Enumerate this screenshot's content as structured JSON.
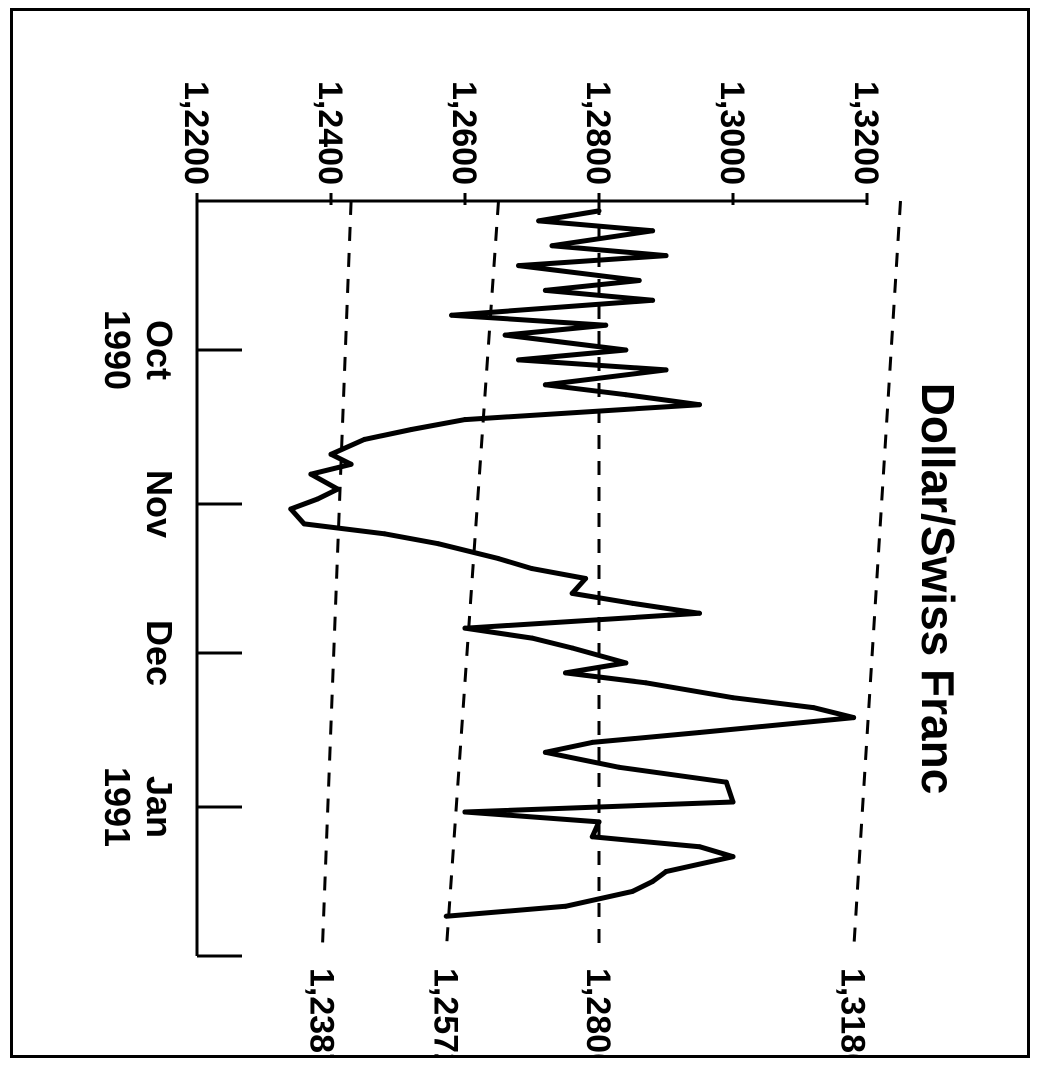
{
  "chart_data": {
    "type": "line",
    "title": "Dollar/Swiss Franc",
    "xlabel": "",
    "ylabel": "",
    "ylim": [
      1.22,
      1.32
    ],
    "y_ticks": [
      "1,3200",
      "1,3000",
      "1,2800",
      "1,2600",
      "1,2400",
      "1,2200"
    ],
    "y_tick_values": [
      1.32,
      1.3,
      1.28,
      1.26,
      1.24,
      1.22
    ],
    "x_tick_labels": [
      {
        "month": "Oct",
        "year": "1990"
      },
      {
        "month": "Nov",
        "year": ""
      },
      {
        "month": "Dec",
        "year": ""
      },
      {
        "month": "Jan",
        "year": "1991"
      }
    ],
    "grid": false,
    "legend": "none",
    "series": [
      {
        "x": [
          "1990-09-03",
          "1990-09-05",
          "1990-09-07",
          "1990-09-10",
          "1990-09-12",
          "1990-09-14",
          "1990-09-17",
          "1990-09-19",
          "1990-09-21",
          "1990-09-24",
          "1990-09-26",
          "1990-09-28",
          "1990-10-01",
          "1990-10-03",
          "1990-10-05",
          "1990-10-08",
          "1990-10-10",
          "1990-10-12",
          "1990-10-15",
          "1990-10-17",
          "1990-10-19",
          "1990-10-22",
          "1990-10-24",
          "1990-10-26",
          "1990-10-29",
          "1990-10-31",
          "1990-11-02",
          "1990-11-05",
          "1990-11-07",
          "1990-11-09",
          "1990-11-12",
          "1990-11-14",
          "1990-11-16",
          "1990-11-19",
          "1990-11-21",
          "1990-11-23",
          "1990-11-26",
          "1990-11-28",
          "1990-11-30",
          "1990-12-03",
          "1990-12-05",
          "1990-12-07",
          "1990-12-10",
          "1990-12-12",
          "1990-12-14",
          "1990-12-17",
          "1990-12-19",
          "1990-12-21",
          "1990-12-24",
          "1990-12-27",
          "1990-12-31",
          "1991-01-02",
          "1991-01-04",
          "1991-01-07",
          "1991-01-09",
          "1991-01-11",
          "1991-01-14",
          "1991-01-16",
          "1991-01-18",
          "1991-01-21",
          "1991-01-23"
        ],
        "values": [
          1.28,
          1.271,
          1.288,
          1.273,
          1.29,
          1.268,
          1.286,
          1.272,
          1.288,
          1.258,
          1.281,
          1.266,
          1.284,
          1.268,
          1.29,
          1.272,
          1.284,
          1.295,
          1.26,
          1.252,
          1.245,
          1.24,
          1.243,
          1.237,
          1.241,
          1.238,
          1.234,
          1.236,
          1.248,
          1.256,
          1.265,
          1.27,
          1.278,
          1.276,
          1.285,
          1.295,
          1.26,
          1.27,
          1.276,
          1.284,
          1.275,
          1.287,
          1.3,
          1.312,
          1.318,
          1.295,
          1.279,
          1.272,
          1.283,
          1.299,
          1.3,
          1.26,
          1.28,
          1.279,
          1.295,
          1.3,
          1.29,
          1.288,
          1.285,
          1.275,
          1.2572
        ]
      }
    ],
    "annotations": [
      {
        "label": "1,3180",
        "value": 1.318,
        "connects": [
          1.325,
          1.318
        ]
      },
      {
        "label": "1,2800",
        "value": 1.28,
        "connects": [
          1.28,
          1.28
        ]
      },
      {
        "label": "1,2572",
        "value": 1.2572,
        "connects": [
          1.265,
          1.2572
        ]
      },
      {
        "label": "1,2387",
        "value": 1.2387,
        "connects": [
          1.243,
          1.2387
        ]
      }
    ],
    "colors": {
      "line": "#000000",
      "background": "#ffffff"
    }
  }
}
